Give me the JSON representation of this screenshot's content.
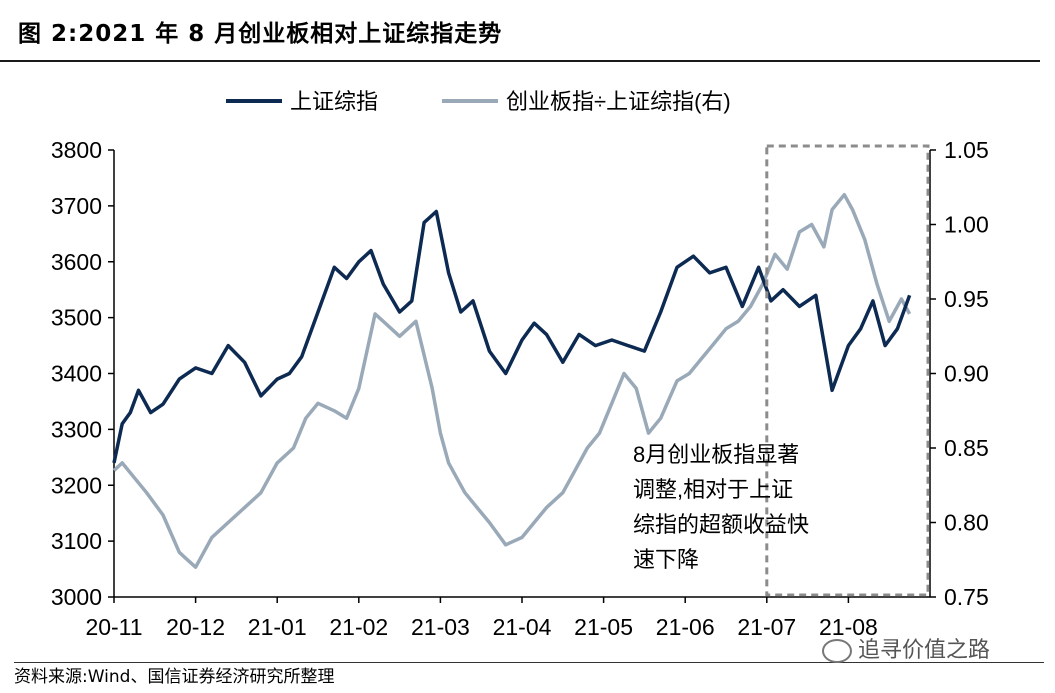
{
  "figure": {
    "title": "图 2:2021 年 8 月创业板相对上证综指走势",
    "source": "资料来源:Wind、国信证券经济研究所整理",
    "watermark": "追寻价值之路"
  },
  "chart_data": {
    "type": "line",
    "categories": [
      "20-11",
      "20-12",
      "21-01",
      "21-02",
      "21-03",
      "21-04",
      "21-05",
      "21-06",
      "21-07",
      "21-08"
    ],
    "left_axis": {
      "ylim": [
        3000,
        3800
      ],
      "ticks": [
        "3800",
        "3700",
        "3600",
        "3500",
        "3400",
        "3300",
        "3200",
        "3100",
        "3000"
      ]
    },
    "right_axis": {
      "ylim": [
        0.75,
        1.05
      ],
      "ticks": [
        "1.05",
        "1.00",
        "0.95",
        "0.90",
        "0.85",
        "0.80",
        "0.75"
      ]
    },
    "series": [
      {
        "name": "上证综指",
        "axis": "left",
        "color": "#0d2a52",
        "x": [
          0,
          0.1,
          0.2,
          0.3,
          0.45,
          0.6,
          0.8,
          1.0,
          1.2,
          1.4,
          1.6,
          1.8,
          2.0,
          2.15,
          2.3,
          2.5,
          2.7,
          2.85,
          3.0,
          3.15,
          3.3,
          3.5,
          3.65,
          3.8,
          3.95,
          4.1,
          4.25,
          4.4,
          4.6,
          4.8,
          5.0,
          5.15,
          5.3,
          5.5,
          5.7,
          5.9,
          6.1,
          6.3,
          6.5,
          6.7,
          6.9,
          7.1,
          7.3,
          7.5,
          7.7,
          7.9,
          8.05,
          8.2,
          8.4,
          8.6,
          8.8,
          9.0,
          9.15,
          9.3,
          9.45,
          9.6,
          9.75
        ],
        "values": [
          3240,
          3310,
          3330,
          3370,
          3330,
          3345,
          3390,
          3410,
          3400,
          3450,
          3420,
          3360,
          3390,
          3400,
          3430,
          3510,
          3590,
          3570,
          3600,
          3620,
          3560,
          3510,
          3530,
          3670,
          3690,
          3580,
          3510,
          3530,
          3440,
          3400,
          3460,
          3490,
          3470,
          3420,
          3470,
          3450,
          3460,
          3450,
          3440,
          3510,
          3590,
          3610,
          3580,
          3590,
          3520,
          3590,
          3530,
          3550,
          3520,
          3540,
          3370,
          3450,
          3480,
          3530,
          3450,
          3480,
          3540
        ]
      },
      {
        "name": "创业板指÷上证综指(右)",
        "axis": "right",
        "color": "#9aa9b8",
        "x": [
          0,
          0.1,
          0.25,
          0.4,
          0.6,
          0.8,
          0.9,
          1.0,
          1.2,
          1.4,
          1.6,
          1.8,
          2.0,
          2.2,
          2.35,
          2.5,
          2.7,
          2.85,
          3.0,
          3.2,
          3.4,
          3.5,
          3.7,
          3.9,
          4.0,
          4.1,
          4.2,
          4.3,
          4.45,
          4.6,
          4.8,
          5.0,
          5.15,
          5.3,
          5.5,
          5.6,
          5.8,
          5.95,
          6.1,
          6.25,
          6.4,
          6.55,
          6.7,
          6.9,
          7.05,
          7.2,
          7.35,
          7.5,
          7.65,
          7.8,
          7.95,
          8.1,
          8.25,
          8.4,
          8.55,
          8.7,
          8.8,
          8.95,
          9.05,
          9.2,
          9.35,
          9.5,
          9.65,
          9.75
        ],
        "values": [
          0.835,
          0.84,
          0.83,
          0.82,
          0.805,
          0.78,
          0.775,
          0.77,
          0.79,
          0.8,
          0.81,
          0.82,
          0.84,
          0.85,
          0.87,
          0.88,
          0.875,
          0.87,
          0.89,
          0.94,
          0.93,
          0.925,
          0.935,
          0.89,
          0.86,
          0.84,
          0.83,
          0.82,
          0.81,
          0.8,
          0.785,
          0.79,
          0.8,
          0.81,
          0.82,
          0.83,
          0.85,
          0.86,
          0.88,
          0.9,
          0.89,
          0.86,
          0.87,
          0.895,
          0.9,
          0.91,
          0.92,
          0.93,
          0.935,
          0.945,
          0.96,
          0.98,
          0.97,
          0.995,
          1.0,
          0.985,
          1.01,
          1.02,
          1.01,
          0.99,
          0.96,
          0.935,
          0.95,
          0.94
        ]
      }
    ],
    "legend": [
      "上证综指",
      "创业板指÷上证综指(右)"
    ],
    "legend_position": "top",
    "highlight_start": 8.0,
    "annotation": [
      "8月创业板指显著",
      "调整,相对于上证",
      "综指的超额收益快",
      "速下降"
    ],
    "grid": false
  }
}
